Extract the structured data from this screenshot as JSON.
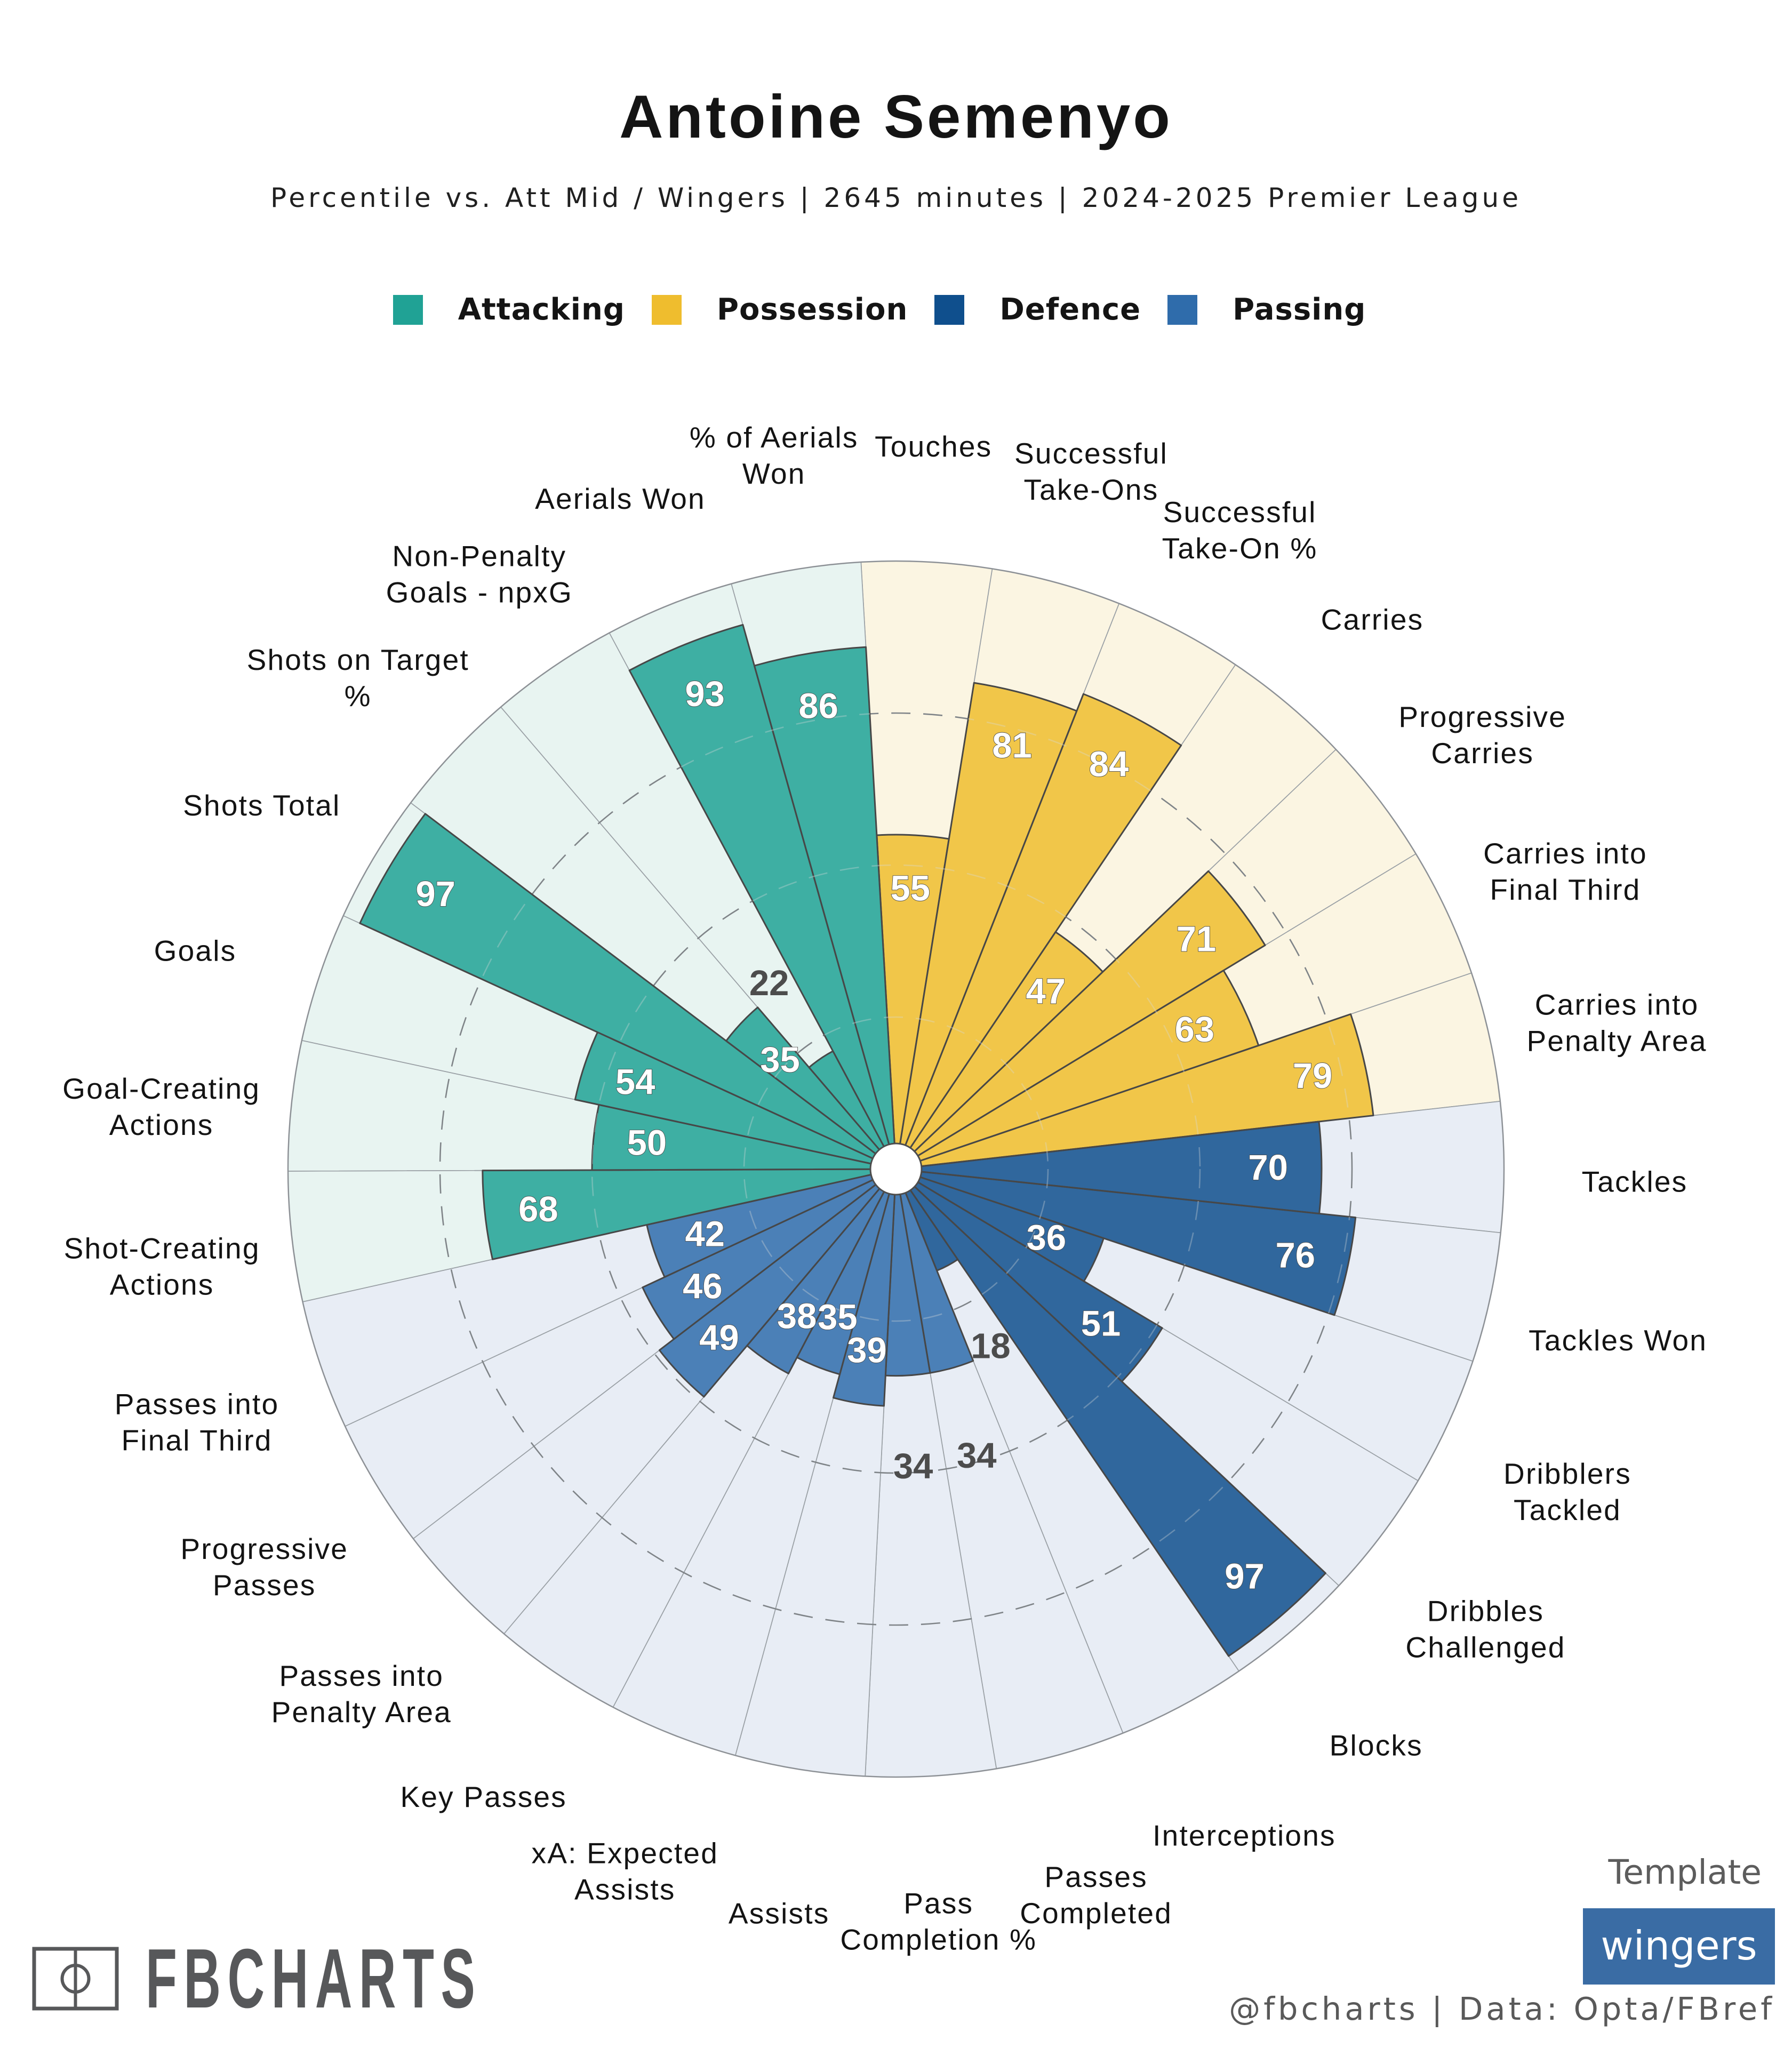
{
  "header": {
    "title": "Antoine Semenyo",
    "subtitle": "Percentile vs. Att Mid / Wingers | 2645 minutes | 2024-2025 Premier League"
  },
  "chart_data": {
    "type": "bar",
    "coordinate_system": "polar",
    "value_range": [
      0,
      100
    ],
    "gridlines": [
      25,
      50,
      75
    ],
    "grid_style": "dashed",
    "rotation_deg": -3.3,
    "clockwise_from_top": true,
    "categories": {
      "attacking": {
        "label": "Attacking",
        "color": "#20a295",
        "track": "#e8f4f1"
      },
      "possession": {
        "label": "Possession",
        "color": "#efbd2e",
        "track": "#fbf5e2"
      },
      "defence": {
        "label": "Defence",
        "color": "#0f4f8d",
        "track": "#e8edf5"
      },
      "passing": {
        "label": "Passing",
        "color": "#2f6cab",
        "track": "#e8edf5"
      }
    },
    "slices": [
      {
        "label": "Touches",
        "value": 55,
        "category": "possession"
      },
      {
        "label": "Successful\nTake-Ons",
        "value": 81,
        "category": "possession"
      },
      {
        "label": "Successful\nTake-On %",
        "value": 84,
        "category": "possession"
      },
      {
        "label": "Carries",
        "value": 47,
        "category": "possession"
      },
      {
        "label": "Progressive\nCarries",
        "value": 71,
        "category": "possession"
      },
      {
        "label": "Carries into\nFinal Third",
        "value": 63,
        "category": "possession"
      },
      {
        "label": "Carries into\nPenalty Area",
        "value": 79,
        "category": "possession"
      },
      {
        "label": "Tackles",
        "value": 70,
        "category": "defence"
      },
      {
        "label": "Tackles Won",
        "value": 76,
        "category": "defence"
      },
      {
        "label": "Dribblers\nTackled",
        "value": 36,
        "category": "defence"
      },
      {
        "label": "Dribbles\nChallenged",
        "value": 51,
        "category": "defence"
      },
      {
        "label": "Blocks",
        "value": 97,
        "category": "defence"
      },
      {
        "label": "Interceptions",
        "value": 18,
        "category": "defence"
      },
      {
        "label": "Passes\nCompleted",
        "value": 34,
        "category": "passing"
      },
      {
        "label": "Pass\nCompletion %",
        "value": 34,
        "category": "passing"
      },
      {
        "label": "Assists",
        "value": 39,
        "category": "passing"
      },
      {
        "label": "xA: Expected\nAssists",
        "value": 35,
        "category": "passing"
      },
      {
        "label": "Key Passes",
        "value": 38,
        "category": "passing"
      },
      {
        "label": "Passes into\nPenalty Area",
        "value": 49,
        "category": "passing"
      },
      {
        "label": "Progressive\nPasses",
        "value": 46,
        "category": "passing"
      },
      {
        "label": "Passes into\nFinal Third",
        "value": 42,
        "category": "passing"
      },
      {
        "label": "Shot-Creating\nActions",
        "value": 68,
        "category": "attacking"
      },
      {
        "label": "Goal-Creating\nActions",
        "value": 50,
        "category": "attacking"
      },
      {
        "label": "Goals",
        "value": 54,
        "category": "attacking"
      },
      {
        "label": "Shots Total",
        "value": 97,
        "category": "attacking"
      },
      {
        "label": "Shots on Target\n%",
        "value": 35,
        "category": "attacking"
      },
      {
        "label": "Non-Penalty\nGoals - npxG",
        "value": 22,
        "category": "attacking"
      },
      {
        "label": "Aerials Won",
        "value": 93,
        "category": "attacking"
      },
      {
        "label": "% of Aerials\nWon",
        "value": 86,
        "category": "attacking"
      }
    ]
  },
  "footer": {
    "brand": "FBCHARTS",
    "template_label": "Template",
    "template_value": "wingers",
    "template_button_color": "#3a6ca4",
    "credit": "@fbcharts | Data: Opta/FBref"
  }
}
